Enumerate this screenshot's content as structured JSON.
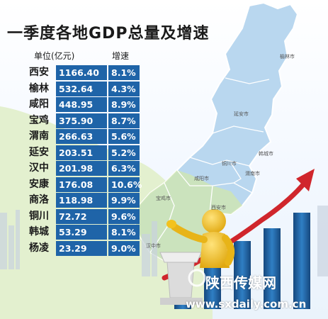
{
  "chart_data": {
    "type": "table",
    "title": "一季度各地GDP总量及增速",
    "header_unit": "单位(亿元)",
    "header_rate": "增速",
    "rows": [
      {
        "city": "西安",
        "gdp": "1166.40",
        "growth": "8.1%"
      },
      {
        "city": "榆林",
        "gdp": "532.64",
        "growth": "4.3%"
      },
      {
        "city": "咸阳",
        "gdp": "448.95",
        "growth": "8.9%"
      },
      {
        "city": "宝鸡",
        "gdp": "375.90",
        "growth": "8.7%"
      },
      {
        "city": "渭南",
        "gdp": "266.63",
        "growth": "5.6%"
      },
      {
        "city": "延安",
        "gdp": "203.51",
        "growth": "5.2%"
      },
      {
        "city": "汉中",
        "gdp": "201.98",
        "growth": "6.3%"
      },
      {
        "city": "安康",
        "gdp": "176.08",
        "growth": "10.6%"
      },
      {
        "city": "商洛",
        "gdp": "118.98",
        "growth": "9.9%"
      },
      {
        "city": "铜川",
        "gdp": "72.72",
        "growth": "9.6%"
      },
      {
        "city": "韩城",
        "gdp": "53.29",
        "growth": "8.1%"
      },
      {
        "city": "杨凌",
        "gdp": "23.29",
        "growth": "9.0%"
      }
    ]
  },
  "map_labels": [
    "榆林市",
    "延安市",
    "韩城市",
    "铜川市",
    "渭南市",
    "咸阳市",
    "宝鸡市",
    "西安市",
    "汉中市"
  ],
  "watermark": {
    "brand": "陕西传媒网",
    "url": "www.sxdaily.com.cn"
  },
  "colors": {
    "cell_blue": "#1f64a8",
    "map_blue": "#b9d7ef",
    "map_green": "#cfe6b0",
    "arrow_red": "#d0262c",
    "figure_yellow": "#f3c21d"
  }
}
